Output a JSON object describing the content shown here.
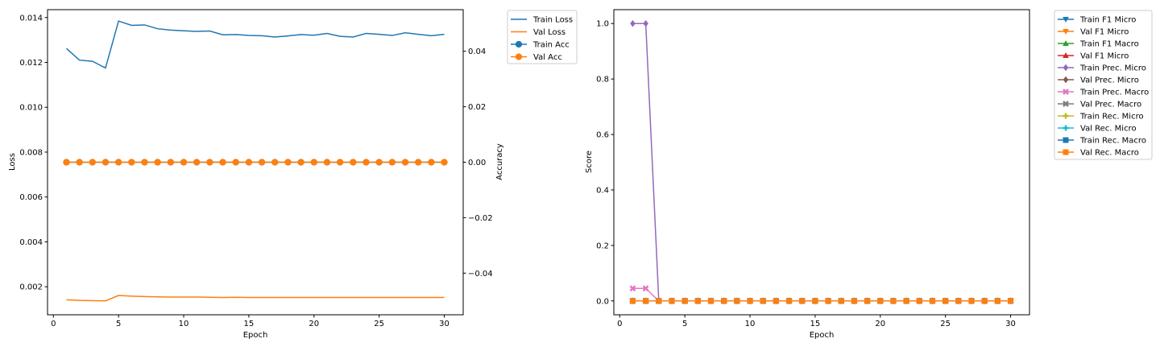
{
  "chart_data": [
    {
      "type": "line",
      "xlabel": "Epoch",
      "ylabel": "Loss",
      "y2label": "Accuracy",
      "xlim": [
        -0.45,
        31.45
      ],
      "ylim": [
        0.00075,
        0.01435
      ],
      "y2lim": [
        -0.055,
        0.055
      ],
      "xticks": [
        0,
        5,
        10,
        15,
        20,
        25,
        30
      ],
      "yticks": [
        0.002,
        0.004,
        0.006,
        0.008,
        0.01,
        0.012,
        0.014
      ],
      "y2ticks": [
        -0.04,
        -0.02,
        0.0,
        0.02,
        0.04
      ],
      "x": [
        1,
        2,
        3,
        4,
        5,
        6,
        7,
        8,
        9,
        10,
        11,
        12,
        13,
        14,
        15,
        16,
        17,
        18,
        19,
        20,
        21,
        22,
        23,
        24,
        25,
        26,
        27,
        28,
        29,
        30
      ],
      "legend_position": "outside-right-top",
      "series": [
        {
          "name": "Train Loss",
          "axis": "left",
          "color": "#1f77b4",
          "marker": "none",
          "values": [
            0.01262,
            0.0121,
            0.01205,
            0.01175,
            0.01384,
            0.01365,
            0.01367,
            0.0135,
            0.01344,
            0.01341,
            0.01338,
            0.0134,
            0.01323,
            0.01324,
            0.0132,
            0.01319,
            0.01313,
            0.01318,
            0.01324,
            0.01321,
            0.01329,
            0.01316,
            0.01313,
            0.01329,
            0.01325,
            0.0132,
            0.01332,
            0.01325,
            0.01319,
            0.01325
          ]
        },
        {
          "name": "Val Loss",
          "axis": "left",
          "color": "#ff7f0e",
          "marker": "none",
          "values": [
            0.00142,
            0.00139,
            0.00138,
            0.00137,
            0.00161,
            0.00158,
            0.00156,
            0.00155,
            0.00154,
            0.00154,
            0.00154,
            0.00153,
            0.00152,
            0.00153,
            0.00152,
            0.00152,
            0.00152,
            0.00152,
            0.00152,
            0.00152,
            0.00152,
            0.00152,
            0.00152,
            0.00152,
            0.00152,
            0.00152,
            0.00152,
            0.00152,
            0.00152,
            0.00152
          ]
        },
        {
          "name": "Train Acc",
          "axis": "right",
          "color": "#1f77b4",
          "marker": "circle",
          "values": [
            0,
            0,
            0,
            0,
            0,
            0,
            0,
            0,
            0,
            0,
            0,
            0,
            0,
            0,
            0,
            0,
            0,
            0,
            0,
            0,
            0,
            0,
            0,
            0,
            0,
            0,
            0,
            0,
            0,
            0
          ]
        },
        {
          "name": "Val Acc",
          "axis": "right",
          "color": "#ff7f0e",
          "marker": "circle",
          "values": [
            0,
            0,
            0,
            0,
            0,
            0,
            0,
            0,
            0,
            0,
            0,
            0,
            0,
            0,
            0,
            0,
            0,
            0,
            0,
            0,
            0,
            0,
            0,
            0,
            0,
            0,
            0,
            0,
            0,
            0
          ]
        }
      ]
    },
    {
      "type": "line",
      "xlabel": "Epoch",
      "ylabel": "Score",
      "xlim": [
        -0.45,
        31.45
      ],
      "ylim": [
        -0.05,
        1.05
      ],
      "xticks": [
        0,
        5,
        10,
        15,
        20,
        25,
        30
      ],
      "yticks": [
        0.0,
        0.2,
        0.4,
        0.6,
        0.8,
        1.0
      ],
      "x": [
        1,
        2,
        3,
        4,
        5,
        6,
        7,
        8,
        9,
        10,
        11,
        12,
        13,
        14,
        15,
        16,
        17,
        18,
        19,
        20,
        21,
        22,
        23,
        24,
        25,
        26,
        27,
        28,
        29,
        30
      ],
      "legend_position": "outside-right-top",
      "series": [
        {
          "name": "Train F1 Micro",
          "color": "#1f77b4",
          "marker": "triangle_down",
          "values": [
            0,
            0,
            0,
            0,
            0,
            0,
            0,
            0,
            0,
            0,
            0,
            0,
            0,
            0,
            0,
            0,
            0,
            0,
            0,
            0,
            0,
            0,
            0,
            0,
            0,
            0,
            0,
            0,
            0,
            0
          ]
        },
        {
          "name": "Val F1 Micro",
          "color": "#ff7f0e",
          "marker": "triangle_down",
          "values": [
            0,
            0,
            0,
            0,
            0,
            0,
            0,
            0,
            0,
            0,
            0,
            0,
            0,
            0,
            0,
            0,
            0,
            0,
            0,
            0,
            0,
            0,
            0,
            0,
            0,
            0,
            0,
            0,
            0,
            0
          ]
        },
        {
          "name": "Train F1 Macro",
          "color": "#2ca02c",
          "marker": "triangle_up",
          "values": [
            0,
            0,
            0,
            0,
            0,
            0,
            0,
            0,
            0,
            0,
            0,
            0,
            0,
            0,
            0,
            0,
            0,
            0,
            0,
            0,
            0,
            0,
            0,
            0,
            0,
            0,
            0,
            0,
            0,
            0
          ]
        },
        {
          "name": "Val F1 Micro",
          "color": "#d62728",
          "marker": "triangle_up",
          "values": [
            0,
            0,
            0,
            0,
            0,
            0,
            0,
            0,
            0,
            0,
            0,
            0,
            0,
            0,
            0,
            0,
            0,
            0,
            0,
            0,
            0,
            0,
            0,
            0,
            0,
            0,
            0,
            0,
            0,
            0
          ]
        },
        {
          "name": "Train Prec. Micro",
          "color": "#9467bd",
          "marker": "diamond",
          "values": [
            1,
            1,
            0,
            0,
            0,
            0,
            0,
            0,
            0,
            0,
            0,
            0,
            0,
            0,
            0,
            0,
            0,
            0,
            0,
            0,
            0,
            0,
            0,
            0,
            0,
            0,
            0,
            0,
            0,
            0
          ]
        },
        {
          "name": "Val Prec. Micro",
          "color": "#8c564b",
          "marker": "diamond",
          "values": [
            0,
            0,
            0,
            0,
            0,
            0,
            0,
            0,
            0,
            0,
            0,
            0,
            0,
            0,
            0,
            0,
            0,
            0,
            0,
            0,
            0,
            0,
            0,
            0,
            0,
            0,
            0,
            0,
            0,
            0
          ]
        },
        {
          "name": "Train Prec. Macro",
          "color": "#e377c2",
          "marker": "x",
          "values": [
            0.045,
            0.045,
            0,
            0,
            0,
            0,
            0,
            0,
            0,
            0,
            0,
            0,
            0,
            0,
            0,
            0,
            0,
            0,
            0,
            0,
            0,
            0,
            0,
            0,
            0,
            0,
            0,
            0,
            0,
            0
          ]
        },
        {
          "name": "Val Prec. Macro",
          "color": "#7f7f7f",
          "marker": "x",
          "values": [
            0,
            0,
            0,
            0,
            0,
            0,
            0,
            0,
            0,
            0,
            0,
            0,
            0,
            0,
            0,
            0,
            0,
            0,
            0,
            0,
            0,
            0,
            0,
            0,
            0,
            0,
            0,
            0,
            0,
            0
          ]
        },
        {
          "name": "Train Rec. Micro",
          "color": "#bcbd22",
          "marker": "plus",
          "values": [
            0,
            0,
            0,
            0,
            0,
            0,
            0,
            0,
            0,
            0,
            0,
            0,
            0,
            0,
            0,
            0,
            0,
            0,
            0,
            0,
            0,
            0,
            0,
            0,
            0,
            0,
            0,
            0,
            0,
            0
          ]
        },
        {
          "name": "Val Rec. Micro",
          "color": "#17becf",
          "marker": "plus",
          "values": [
            0,
            0,
            0,
            0,
            0,
            0,
            0,
            0,
            0,
            0,
            0,
            0,
            0,
            0,
            0,
            0,
            0,
            0,
            0,
            0,
            0,
            0,
            0,
            0,
            0,
            0,
            0,
            0,
            0,
            0
          ]
        },
        {
          "name": "Train Rec. Macro",
          "color": "#1f77b4",
          "marker": "square",
          "values": [
            0,
            0,
            0,
            0,
            0,
            0,
            0,
            0,
            0,
            0,
            0,
            0,
            0,
            0,
            0,
            0,
            0,
            0,
            0,
            0,
            0,
            0,
            0,
            0,
            0,
            0,
            0,
            0,
            0,
            0
          ]
        },
        {
          "name": "Val Rec. Macro",
          "color": "#ff7f0e",
          "marker": "square",
          "values": [
            0,
            0,
            0,
            0,
            0,
            0,
            0,
            0,
            0,
            0,
            0,
            0,
            0,
            0,
            0,
            0,
            0,
            0,
            0,
            0,
            0,
            0,
            0,
            0,
            0,
            0,
            0,
            0,
            0,
            0
          ]
        }
      ]
    }
  ]
}
